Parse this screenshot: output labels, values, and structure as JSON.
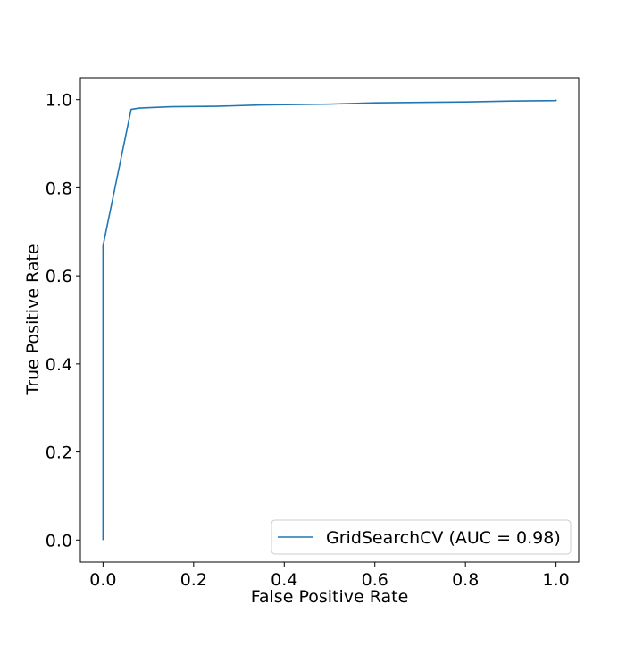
{
  "chart_data": {
    "type": "line",
    "title": "",
    "xlabel": "False Positive Rate",
    "ylabel": "True Positive Rate",
    "xlim": [
      -0.05,
      1.05
    ],
    "ylim": [
      -0.05,
      1.05
    ],
    "xticks": [
      0.0,
      0.2,
      0.4,
      0.6,
      0.8,
      1.0
    ],
    "yticks": [
      0.0,
      0.2,
      0.4,
      0.6,
      0.8,
      1.0
    ],
    "xtick_labels": [
      "0.0",
      "0.2",
      "0.4",
      "0.6",
      "0.8",
      "1.0"
    ],
    "ytick_labels": [
      "0.0",
      "0.2",
      "0.4",
      "0.6",
      "0.8",
      "1.0"
    ],
    "grid": false,
    "legend_position": "lower-right",
    "series": [
      {
        "name": "GridSearchCV (AUC = 0.98)",
        "color": "#1f77b4",
        "x": [
          0.0,
          0.0,
          0.062,
          0.08,
          0.15,
          0.25,
          0.35,
          0.5,
          0.6,
          0.7,
          0.8,
          0.9,
          1.0,
          1.0
        ],
        "y": [
          0.0,
          0.668,
          0.978,
          0.981,
          0.984,
          0.985,
          0.988,
          0.99,
          0.993,
          0.994,
          0.995,
          0.997,
          0.998,
          1.0
        ]
      }
    ]
  }
}
